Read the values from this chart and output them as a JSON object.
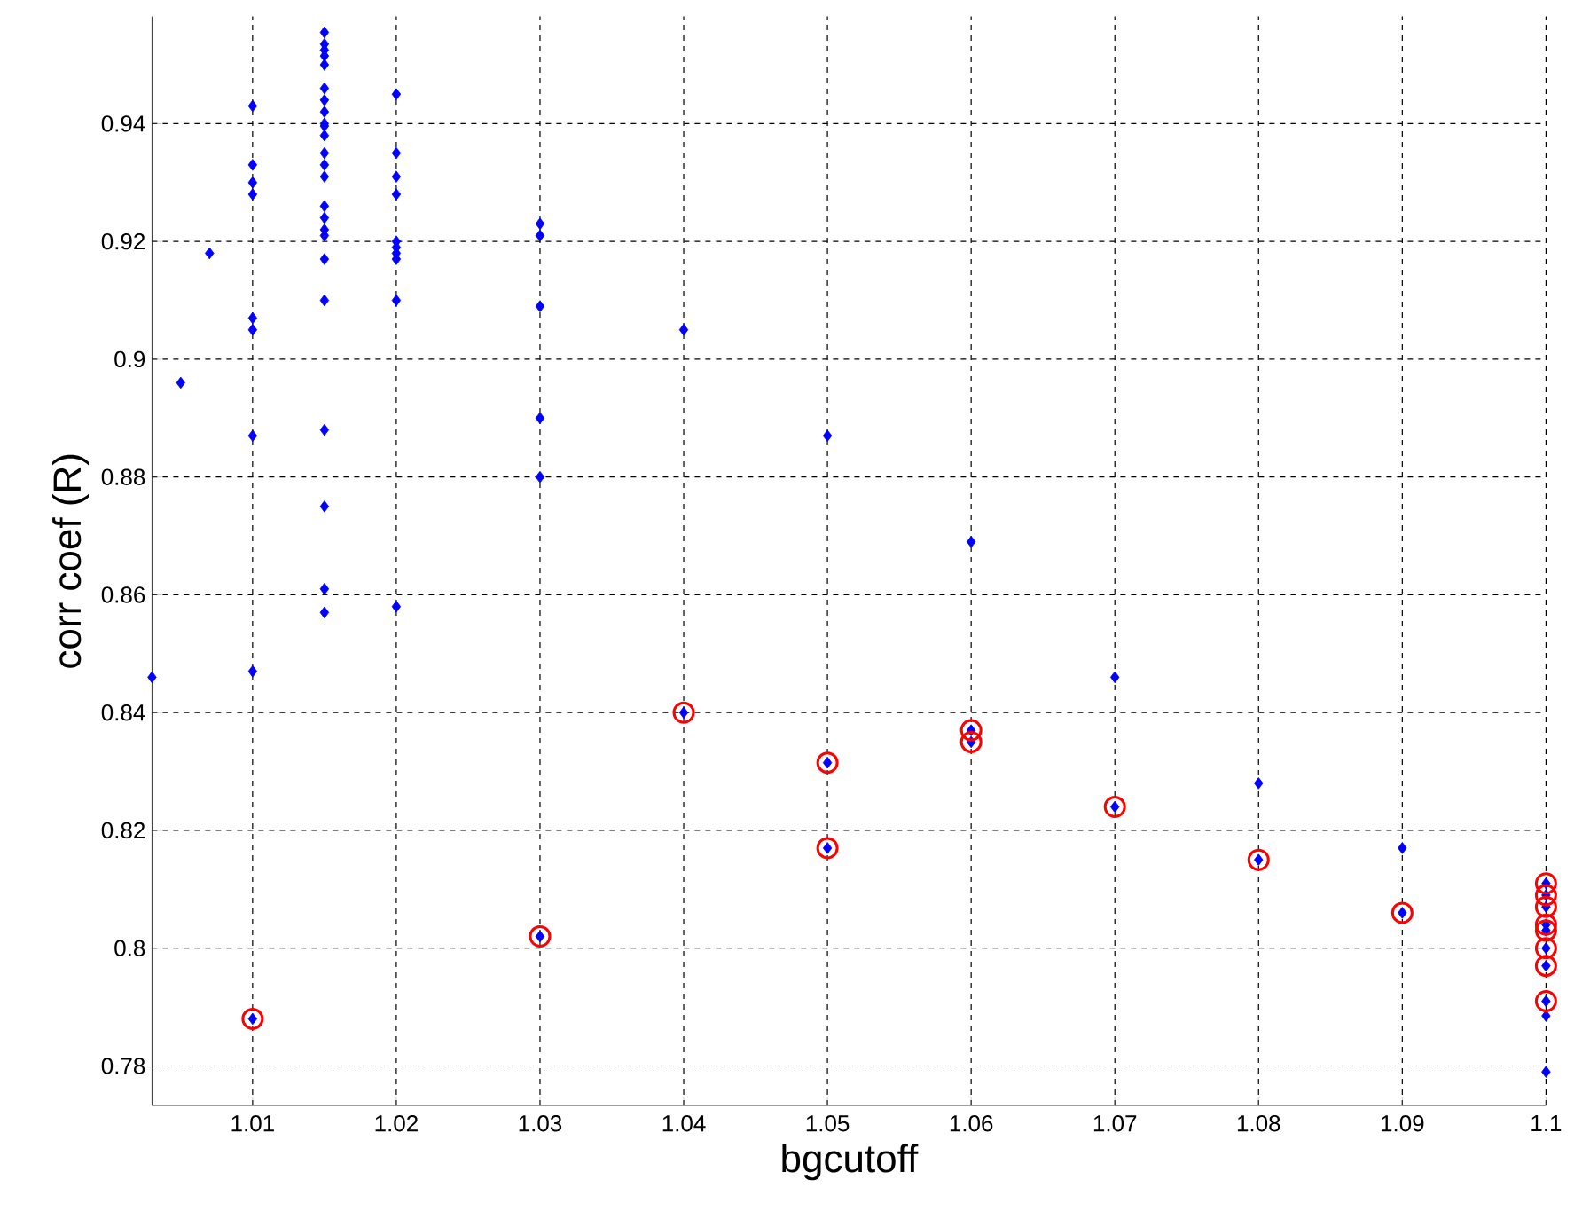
{
  "chart_data": {
    "type": "scatter",
    "xlabel": "bgcutoff",
    "ylabel": "corr coef (R)",
    "xlim": [
      1.003,
      1.1
    ],
    "ylim": [
      0.7733,
      0.9582
    ],
    "xticks": [
      1.01,
      1.02,
      1.03,
      1.04,
      1.05,
      1.06,
      1.07,
      1.08,
      1.09,
      1.1
    ],
    "yticks": [
      0.78,
      0.8,
      0.82,
      0.84,
      0.86,
      0.88,
      0.9,
      0.92,
      0.94
    ],
    "grid": true,
    "line_style": "dashed",
    "series": [
      {
        "color": "#0000ff",
        "marker": "diamond",
        "x": [
          1.003,
          1.005,
          1.007,
          1.01,
          1.01,
          1.01,
          1.01,
          1.01,
          1.01,
          1.01,
          1.01,
          1.01,
          1.015,
          1.015,
          1.015,
          1.015,
          1.015,
          1.015,
          1.015,
          1.015,
          1.015,
          1.015,
          1.015,
          1.015,
          1.015,
          1.015,
          1.015,
          1.015,
          1.015,
          1.015,
          1.015,
          1.015,
          1.015,
          1.015,
          1.015,
          1.015,
          1.02,
          1.02,
          1.02,
          1.02,
          1.02,
          1.02,
          1.02,
          1.02,
          1.02,
          1.02,
          1.03,
          1.03,
          1.03,
          1.03,
          1.03,
          1.03,
          1.04,
          1.04,
          1.05,
          1.05,
          1.05,
          1.06,
          1.06,
          1.06,
          1.07,
          1.07,
          1.08,
          1.08,
          1.09,
          1.09,
          1.1,
          1.1,
          1.1,
          1.1,
          1.1,
          1.1,
          1.1,
          1.1,
          1.1,
          1.1
        ],
        "values": [
          0.846,
          0.896,
          0.918,
          0.943,
          0.933,
          0.93,
          0.928,
          0.907,
          0.905,
          0.887,
          0.847,
          0.788,
          0.9555,
          0.9535,
          0.9525,
          0.9515,
          0.95,
          0.946,
          0.944,
          0.942,
          0.94,
          0.9396,
          0.938,
          0.935,
          0.933,
          0.931,
          0.926,
          0.924,
          0.922,
          0.921,
          0.917,
          0.91,
          0.888,
          0.875,
          0.861,
          0.857,
          0.945,
          0.935,
          0.931,
          0.928,
          0.92,
          0.919,
          0.918,
          0.917,
          0.91,
          0.858,
          0.923,
          0.921,
          0.909,
          0.89,
          0.88,
          0.802,
          0.905,
          0.84,
          0.887,
          0.8315,
          0.817,
          0.869,
          0.837,
          0.835,
          0.846,
          0.824,
          0.828,
          0.815,
          0.817,
          0.806,
          0.811,
          0.809,
          0.807,
          0.804,
          0.803,
          0.8,
          0.797,
          0.791,
          0.7885,
          0.779
        ]
      },
      {
        "color": "#ff0000",
        "marker": "circle",
        "x": [
          1.01,
          1.03,
          1.04,
          1.05,
          1.05,
          1.06,
          1.06,
          1.07,
          1.08,
          1.09,
          1.1,
          1.1,
          1.1,
          1.1,
          1.1,
          1.1,
          1.1,
          1.1
        ],
        "values": [
          0.788,
          0.802,
          0.84,
          0.8315,
          0.817,
          0.837,
          0.835,
          0.824,
          0.815,
          0.806,
          0.811,
          0.809,
          0.807,
          0.804,
          0.803,
          0.8,
          0.797,
          0.791
        ]
      }
    ]
  }
}
